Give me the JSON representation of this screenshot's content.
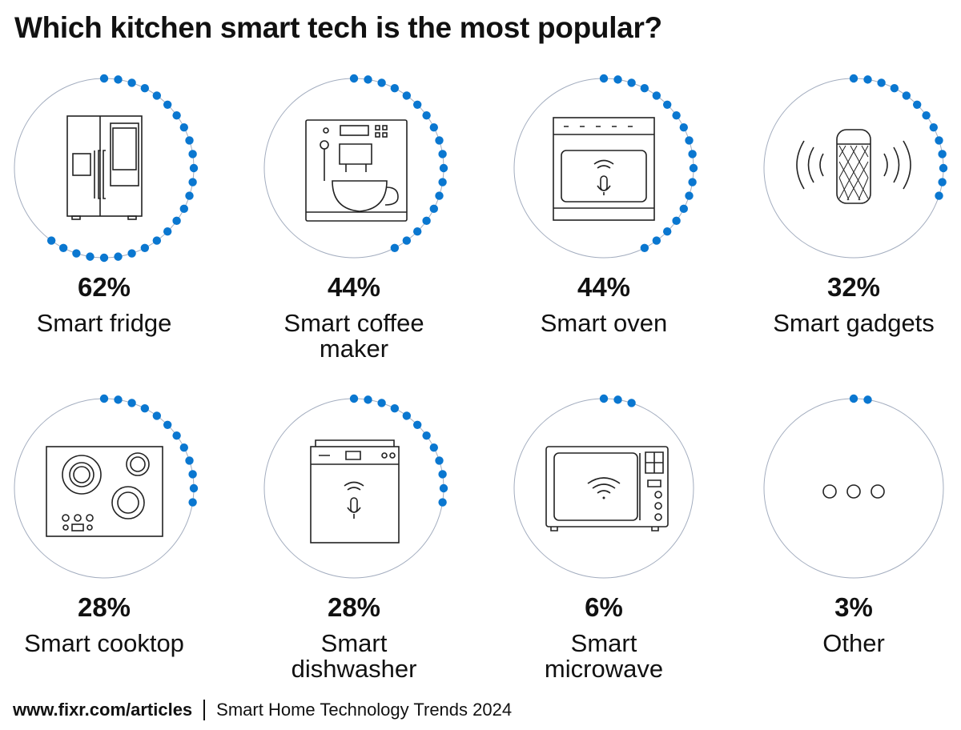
{
  "title": "Which kitchen smart tech is the most popular?",
  "footer": {
    "source": "www.fixr.com/articles",
    "subtitle": "Smart Home Technology Trends 2024"
  },
  "colors": {
    "dot": "#0a77d0",
    "ring": "#a3adbf",
    "icon": "#222222"
  },
  "chart_data": {
    "type": "radial-progress",
    "title": "Which kitchen smart tech is the most popular?",
    "unit": "%",
    "categories": [
      "Smart fridge",
      "Smart coffee maker",
      "Smart oven",
      "Smart gadgets",
      "Smart cooktop",
      "Smart dishwasher",
      "Smart microwave",
      "Other"
    ],
    "values": [
      62,
      44,
      44,
      32,
      28,
      28,
      6,
      3
    ],
    "items": [
      {
        "label": "Smart fridge",
        "value": 62,
        "display": "62%",
        "icon": "fridge-icon"
      },
      {
        "label": "Smart coffee maker",
        "value": 44,
        "display": "44%",
        "icon": "coffee-maker-icon"
      },
      {
        "label": "Smart oven",
        "value": 44,
        "display": "44%",
        "icon": "oven-icon"
      },
      {
        "label": "Smart gadgets",
        "value": 32,
        "display": "32%",
        "icon": "smart-speaker-icon"
      },
      {
        "label": "Smart cooktop",
        "value": 28,
        "display": "28%",
        "icon": "cooktop-icon"
      },
      {
        "label": "Smart dishwasher",
        "value": 28,
        "display": "28%",
        "icon": "dishwasher-icon"
      },
      {
        "label": "Smart microwave",
        "value": 6,
        "display": "6%",
        "icon": "microwave-icon"
      },
      {
        "label": "Other",
        "value": 3,
        "display": "3%",
        "icon": "more-icon"
      }
    ]
  }
}
